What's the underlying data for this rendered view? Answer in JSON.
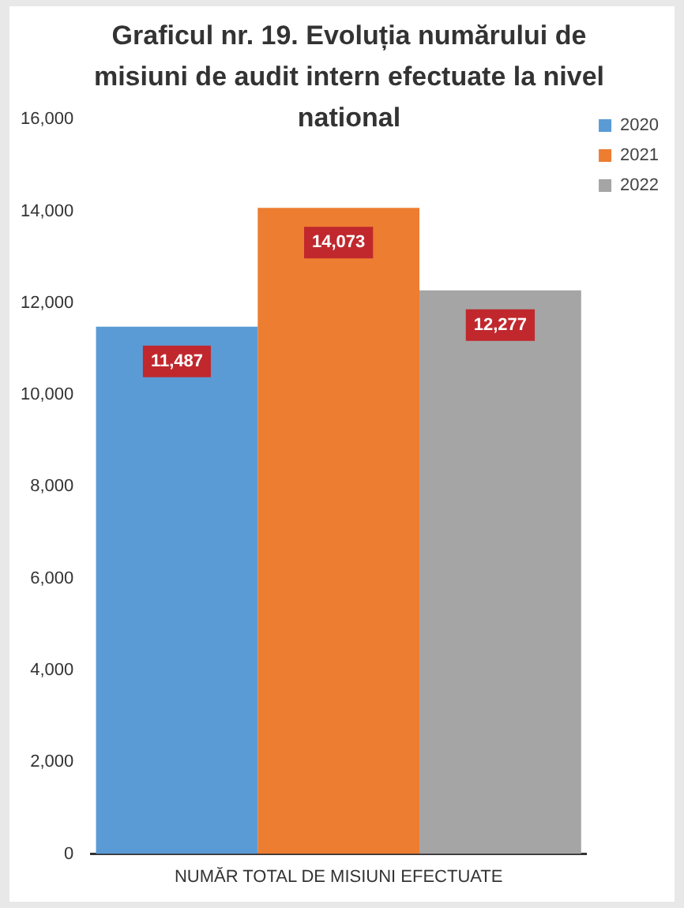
{
  "chart_data": {
    "type": "bar",
    "title": "Graficul nr. 19. Evoluția numărului de misiuni de audit intern efectuate la nivel national",
    "categories": [
      "NUMĂR TOTAL DE MISIUNI EFECTUATE"
    ],
    "series": [
      {
        "name": "2020",
        "color": "#5b9bd5",
        "values": [
          11487
        ],
        "value_labels": [
          "11,487"
        ]
      },
      {
        "name": "2021",
        "color": "#ed7d31",
        "values": [
          14073
        ],
        "value_labels": [
          "14,073"
        ]
      },
      {
        "name": "2022",
        "color": "#a5a5a5",
        "values": [
          12277
        ],
        "value_labels": [
          "12,277"
        ]
      }
    ],
    "ylim": [
      0,
      16000
    ],
    "yticks": [
      {
        "value": 0,
        "label": "0"
      },
      {
        "value": 2000,
        "label": "2,000"
      },
      {
        "value": 4000,
        "label": "4,000"
      },
      {
        "value": 6000,
        "label": "6,000"
      },
      {
        "value": 8000,
        "label": "8,000"
      },
      {
        "value": 10000,
        "label": "10,000"
      },
      {
        "value": 12000,
        "label": "12,000"
      },
      {
        "value": 14000,
        "label": "14,000"
      },
      {
        "value": 16000,
        "label": "16,000"
      }
    ],
    "grid": false,
    "legend": "right"
  }
}
